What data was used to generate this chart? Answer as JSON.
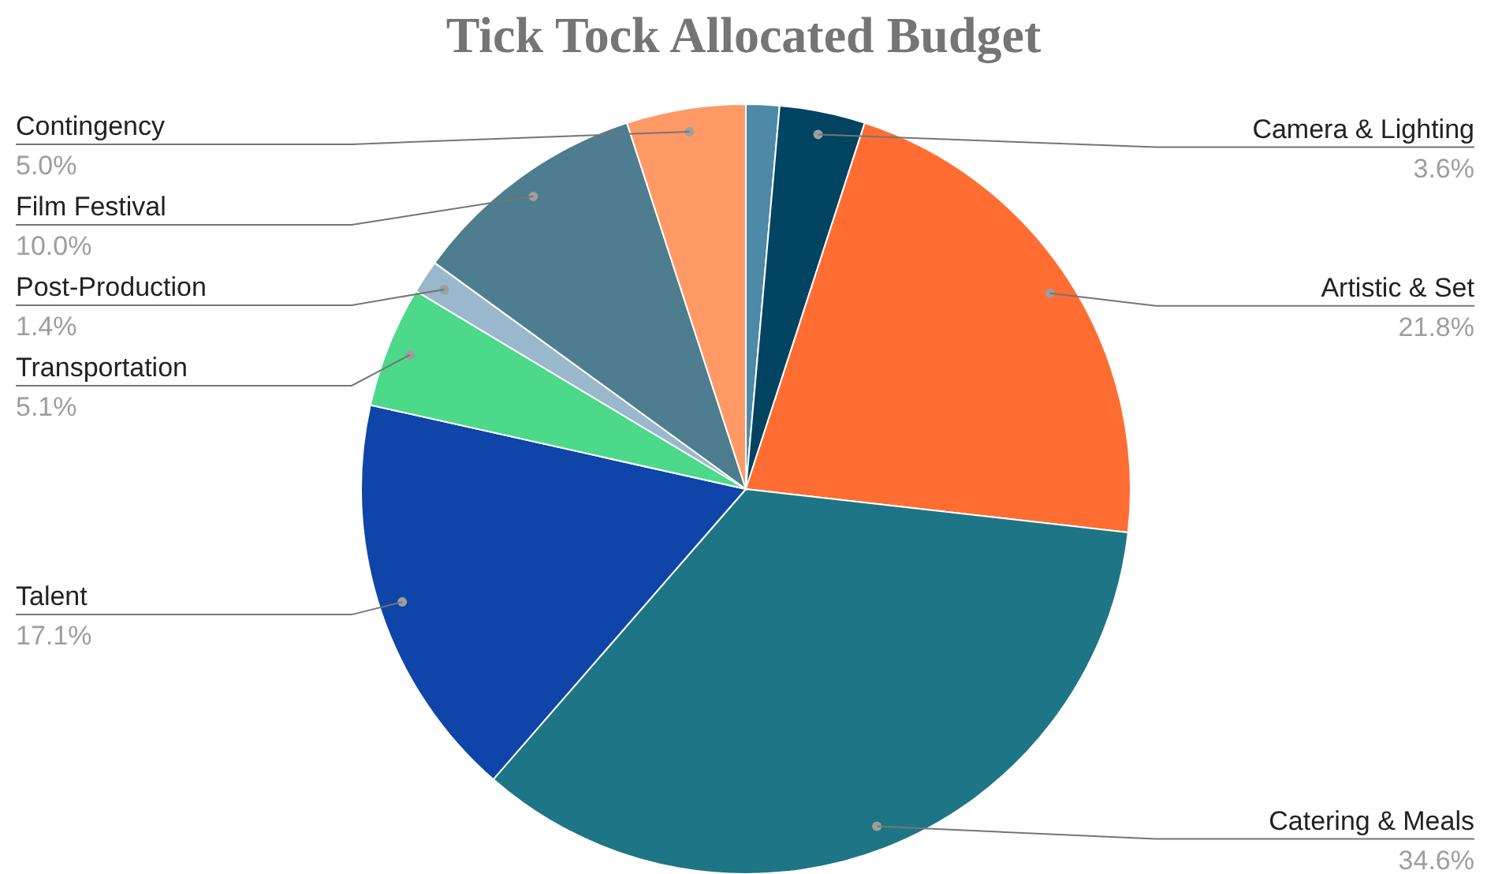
{
  "chart_data": {
    "type": "pie",
    "title": "Tick Tock Allocated Budget",
    "categories": [
      null,
      "Camera & Lighting",
      "Artistic & Set",
      "Catering & Meals",
      "Talent",
      "Transportation",
      "Post-Production",
      "Film Festival",
      "Contingency"
    ],
    "values": [
      1.4,
      3.6,
      21.8,
      34.6,
      17.1,
      5.1,
      1.4,
      10.0,
      5.0
    ],
    "value_labels": [
      null,
      "3.6%",
      "21.8%",
      "34.6%",
      "17.1%",
      "5.1%",
      "1.4%",
      "10.0%",
      "5.0%"
    ],
    "colors": [
      "#4e8aa8",
      "#014461",
      "#ff6d33",
      "#1e7585",
      "#0f44a8",
      "#4cd98a",
      "#9ab8cc",
      "#4d7d8f",
      "#ff9966"
    ]
  }
}
